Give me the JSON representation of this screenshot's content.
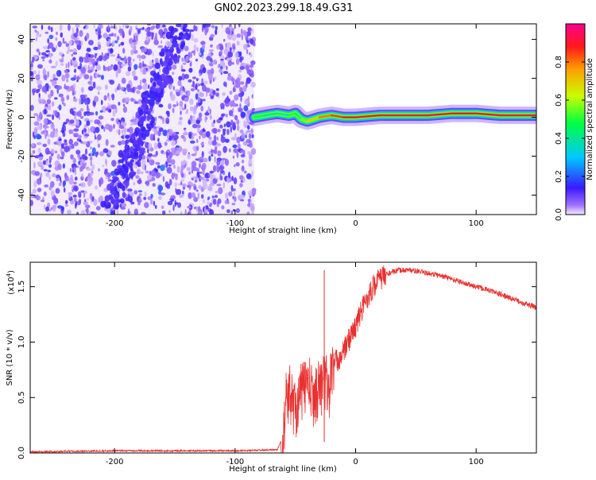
{
  "title": "GN02.2023.299.18.49.G31",
  "chart_data": [
    {
      "type": "heatmap",
      "xlabel": "Height of straight line (km)",
      "ylabel": "Frequency (Hz)",
      "xlim": [
        -270,
        150
      ],
      "ylim": [
        -50,
        48
      ],
      "xticks": [
        -200,
        -100,
        0,
        100
      ],
      "xtick_labels": [
        "-200",
        "-100",
        "0",
        "100"
      ],
      "yticks": [
        -40,
        -20,
        0,
        20,
        40
      ],
      "ytick_labels": [
        "-40",
        "-20",
        "0",
        "20",
        "40"
      ],
      "colorbar": {
        "label": "Normalized spectral amplitude",
        "range": [
          0,
          1
        ],
        "ticks": [
          0.0,
          0.2,
          0.4,
          0.6,
          0.8
        ],
        "tick_labels": [
          "0.0",
          "0.2",
          "0.4",
          "0.6",
          "0.8"
        ]
      },
      "noise_region": {
        "x": [
          -270,
          -84
        ],
        "y": [
          -50,
          48
        ]
      },
      "drift_streak": {
        "start": [
          -205,
          -48
        ],
        "end": [
          -145,
          46
        ]
      },
      "signal_trace": {
        "x": [
          -84,
          -75,
          -65,
          -55,
          -50,
          -45,
          -40,
          -30,
          -20,
          -10,
          0,
          20,
          40,
          60,
          80,
          100,
          120,
          140,
          150
        ],
        "freq": [
          0,
          1,
          2,
          1,
          2,
          -1,
          -2,
          0,
          1,
          0,
          0,
          1,
          1,
          1,
          2,
          2,
          1,
          1,
          1
        ],
        "amplitude": [
          0.35,
          0.45,
          0.4,
          0.4,
          0.5,
          0.45,
          0.55,
          0.7,
          0.8,
          0.85,
          0.9,
          0.9,
          0.9,
          0.9,
          0.9,
          0.9,
          0.9,
          0.9,
          0.9
        ]
      },
      "grid": false
    },
    {
      "type": "line",
      "xlabel": "Height of straight line (km)",
      "ylabel": "SNR (10 * v/v)",
      "y_multiplier_label": "(x10",
      "y_multiplier_exp": "4",
      "y_multiplier_close": ")",
      "xlim": [
        -270,
        150
      ],
      "ylim": [
        0,
        1.72
      ],
      "xticks": [
        -200,
        -100,
        0,
        100
      ],
      "xtick_labels": [
        "-200",
        "-100",
        "0",
        "100"
      ],
      "yticks": [
        0.0,
        0.5,
        1.0,
        1.5
      ],
      "ytick_labels": [
        "0.0",
        "0.5",
        "1.0",
        "1.5"
      ],
      "series": [
        {
          "color": "#e8312f",
          "x": [
            -270,
            -200,
            -150,
            -100,
            -65,
            -60,
            -58,
            -55,
            -50,
            -45,
            -40,
            -35,
            -30,
            -25,
            -22,
            -20,
            -15,
            -10,
            -5,
            0,
            5,
            10,
            15,
            20,
            25,
            30,
            35,
            40,
            45,
            50,
            60,
            70,
            80,
            90,
            100,
            110,
            120,
            130,
            140,
            150
          ],
          "y": [
            0.01,
            0.02,
            0.02,
            0.02,
            0.03,
            0.15,
            0.5,
            0.6,
            0.45,
            0.6,
            0.7,
            0.55,
            0.65,
            0.7,
            0.6,
            0.8,
            0.85,
            0.92,
            1.05,
            1.15,
            1.3,
            1.42,
            1.52,
            1.58,
            1.61,
            1.63,
            1.645,
            1.65,
            1.65,
            1.64,
            1.62,
            1.6,
            1.57,
            1.53,
            1.5,
            1.47,
            1.43,
            1.39,
            1.35,
            1.31
          ]
        }
      ],
      "grid": false
    }
  ]
}
